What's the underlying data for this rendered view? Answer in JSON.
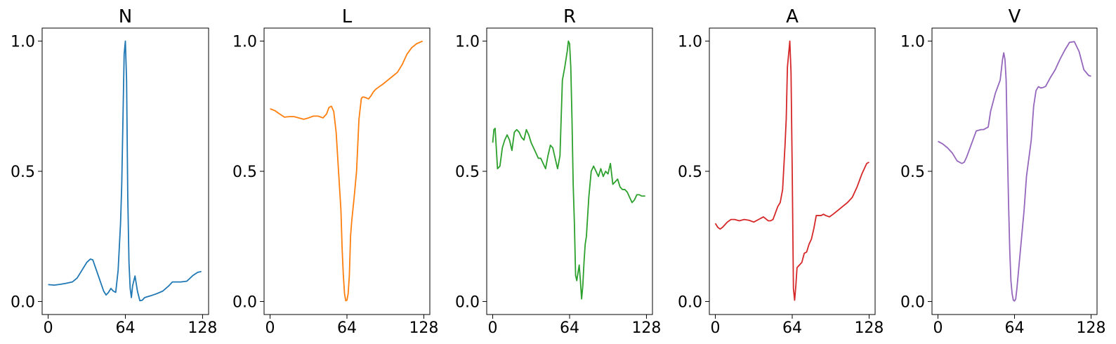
{
  "chart_data": [
    {
      "type": "line",
      "title": "N",
      "color": "#1f77b4",
      "xlim": [
        -5,
        133
      ],
      "ylim": [
        -0.05,
        1.05
      ],
      "xticks": [
        0,
        64,
        128
      ],
      "yticks": [
        0.0,
        0.5,
        1.0
      ],
      "xtick_labels": [
        "0",
        "64",
        "128"
      ],
      "ytick_labels": [
        "0.0",
        "0.5",
        "1.0"
      ],
      "series": [
        {
          "x": [
            0,
            5,
            10,
            15,
            20,
            24,
            28,
            32,
            35,
            37,
            40,
            43,
            46,
            48,
            50,
            52,
            54,
            56,
            58,
            60,
            61,
            62,
            63,
            64,
            65,
            66,
            67,
            68,
            69,
            70,
            72,
            74,
            76,
            78,
            80,
            85,
            90,
            95,
            100,
            103,
            106,
            110,
            115,
            120,
            124,
            127
          ],
          "values": [
            0.065,
            0.063,
            0.066,
            0.07,
            0.075,
            0.09,
            0.12,
            0.15,
            0.163,
            0.16,
            0.12,
            0.08,
            0.04,
            0.025,
            0.035,
            0.05,
            0.04,
            0.035,
            0.12,
            0.3,
            0.45,
            0.7,
            0.95,
            1.0,
            0.85,
            0.4,
            0.15,
            0.05,
            0.015,
            0.06,
            0.098,
            0.04,
            0.003,
            0.005,
            0.015,
            0.022,
            0.03,
            0.04,
            0.06,
            0.075,
            0.075,
            0.075,
            0.078,
            0.1,
            0.112,
            0.115
          ]
        }
      ]
    },
    {
      "type": "line",
      "title": "L",
      "color": "#ff7f0e",
      "xlim": [
        -5,
        133
      ],
      "ylim": [
        -0.05,
        1.05
      ],
      "xticks": [
        0,
        64,
        128
      ],
      "yticks": [
        0.0,
        0.5,
        1.0
      ],
      "xtick_labels": [
        "0",
        "64",
        "128"
      ],
      "ytick_labels": [
        "0.0",
        "0.5",
        "1.0"
      ],
      "series": [
        {
          "x": [
            0,
            4,
            8,
            12,
            16,
            20,
            24,
            28,
            32,
            36,
            40,
            44,
            47,
            49,
            51,
            53,
            55,
            57,
            59,
            60,
            61,
            62,
            63,
            64,
            65,
            66,
            67,
            68,
            70,
            72,
            74,
            76,
            77,
            78,
            80,
            82,
            84,
            86,
            88,
            90,
            94,
            98,
            102,
            106,
            110,
            114,
            118,
            122,
            127
          ],
          "values": [
            0.74,
            0.733,
            0.72,
            0.708,
            0.71,
            0.71,
            0.705,
            0.7,
            0.705,
            0.712,
            0.712,
            0.705,
            0.72,
            0.745,
            0.75,
            0.73,
            0.65,
            0.5,
            0.35,
            0.2,
            0.1,
            0.03,
            0.003,
            0.005,
            0.03,
            0.1,
            0.25,
            0.31,
            0.4,
            0.5,
            0.7,
            0.78,
            0.785,
            0.785,
            0.782,
            0.778,
            0.79,
            0.805,
            0.815,
            0.822,
            0.835,
            0.85,
            0.865,
            0.88,
            0.91,
            0.95,
            0.975,
            0.99,
            1.0
          ]
        }
      ]
    },
    {
      "type": "line",
      "title": "R",
      "color": "#2ca02c",
      "xlim": [
        -5,
        133
      ],
      "ylim": [
        -0.05,
        1.05
      ],
      "xticks": [
        0,
        64,
        128
      ],
      "yticks": [
        0.0,
        0.5,
        1.0
      ],
      "xtick_labels": [
        "0",
        "64",
        "128"
      ],
      "ytick_labels": [
        "0.0",
        "0.5",
        "1.0"
      ],
      "series": [
        {
          "x": [
            0,
            1,
            2,
            4,
            6,
            8,
            10,
            12,
            14,
            16,
            18,
            20,
            22,
            24,
            26,
            28,
            30,
            32,
            34,
            36,
            38,
            40,
            42,
            44,
            46,
            48,
            50,
            52,
            54,
            56,
            58,
            60,
            62,
            63,
            64,
            65,
            66,
            67,
            68,
            69,
            70,
            72,
            73,
            74,
            75,
            76,
            77,
            78,
            80,
            82,
            84,
            86,
            88,
            90,
            92,
            94,
            96,
            98,
            100,
            102,
            104,
            106,
            108,
            110,
            112,
            114,
            116,
            118,
            120,
            122,
            124,
            127
          ],
          "values": [
            0.61,
            0.66,
            0.665,
            0.51,
            0.52,
            0.59,
            0.62,
            0.64,
            0.62,
            0.58,
            0.65,
            0.66,
            0.65,
            0.63,
            0.62,
            0.66,
            0.64,
            0.61,
            0.59,
            0.57,
            0.55,
            0.55,
            0.53,
            0.51,
            0.56,
            0.6,
            0.59,
            0.55,
            0.51,
            0.56,
            0.85,
            0.9,
            0.96,
            1.0,
            0.99,
            0.9,
            0.7,
            0.45,
            0.3,
            0.1,
            0.08,
            0.14,
            0.08,
            0.01,
            0.06,
            0.15,
            0.22,
            0.25,
            0.4,
            0.5,
            0.52,
            0.5,
            0.48,
            0.51,
            0.48,
            0.5,
            0.49,
            0.53,
            0.45,
            0.46,
            0.47,
            0.44,
            0.43,
            0.43,
            0.42,
            0.4,
            0.38,
            0.39,
            0.41,
            0.41,
            0.405,
            0.405
          ]
        }
      ]
    },
    {
      "type": "line",
      "title": "A",
      "color": "#d62728",
      "xlim": [
        -5,
        133
      ],
      "ylim": [
        -0.05,
        1.05
      ],
      "xticks": [
        0,
        64,
        128
      ],
      "yticks": [
        0.0,
        0.5,
        1.0
      ],
      "xtick_labels": [
        "0",
        "64",
        "128"
      ],
      "ytick_labels": [
        "0.0",
        "0.5",
        "1.0"
      ],
      "series": [
        {
          "x": [
            0,
            2,
            4,
            6,
            8,
            10,
            13,
            16,
            20,
            24,
            28,
            32,
            36,
            40,
            44,
            46,
            48,
            50,
            52,
            54,
            56,
            58,
            59,
            60,
            61,
            62,
            63,
            64,
            65,
            66,
            67,
            68,
            69,
            70,
            72,
            74,
            76,
            78,
            80,
            82,
            84,
            86,
            88,
            90,
            92,
            95,
            98,
            102,
            106,
            110,
            114,
            118,
            122,
            126,
            128
          ],
          "values": [
            0.3,
            0.285,
            0.278,
            0.285,
            0.295,
            0.305,
            0.315,
            0.315,
            0.31,
            0.315,
            0.312,
            0.305,
            0.315,
            0.325,
            0.31,
            0.31,
            0.315,
            0.34,
            0.365,
            0.38,
            0.43,
            0.6,
            0.7,
            0.9,
            0.95,
            1.0,
            0.88,
            0.5,
            0.05,
            0.005,
            0.06,
            0.13,
            0.135,
            0.14,
            0.15,
            0.185,
            0.19,
            0.22,
            0.24,
            0.28,
            0.33,
            0.33,
            0.33,
            0.335,
            0.33,
            0.325,
            0.335,
            0.35,
            0.365,
            0.38,
            0.4,
            0.44,
            0.49,
            0.53,
            0.535
          ]
        }
      ]
    },
    {
      "type": "line",
      "title": "V",
      "color": "#9467bd",
      "xlim": [
        -5,
        133
      ],
      "ylim": [
        -0.05,
        1.05
      ],
      "xticks": [
        0,
        64,
        128
      ],
      "yticks": [
        0.0,
        0.5,
        1.0
      ],
      "xtick_labels": [
        "0",
        "64",
        "128"
      ],
      "ytick_labels": [
        "0.0",
        "0.5",
        "1.0"
      ],
      "series": [
        {
          "x": [
            0,
            4,
            8,
            12,
            16,
            20,
            22,
            24,
            28,
            32,
            36,
            38,
            42,
            44,
            48,
            52,
            54,
            55,
            56,
            57,
            58,
            59,
            60,
            61,
            62,
            63,
            64,
            65,
            66,
            68,
            70,
            72,
            74,
            76,
            78,
            80,
            82,
            84,
            86,
            88,
            90,
            94,
            98,
            102,
            106,
            110,
            114,
            118,
            122,
            126,
            128
          ],
          "values": [
            0.615,
            0.605,
            0.59,
            0.57,
            0.54,
            0.53,
            0.535,
            0.555,
            0.605,
            0.655,
            0.66,
            0.66,
            0.67,
            0.73,
            0.8,
            0.85,
            0.93,
            0.955,
            0.93,
            0.85,
            0.6,
            0.38,
            0.2,
            0.08,
            0.03,
            0.005,
            0.002,
            0.01,
            0.05,
            0.15,
            0.25,
            0.35,
            0.48,
            0.55,
            0.62,
            0.75,
            0.81,
            0.825,
            0.82,
            0.822,
            0.826,
            0.86,
            0.89,
            0.93,
            0.965,
            0.995,
            0.998,
            0.96,
            0.89,
            0.868,
            0.865
          ]
        }
      ]
    }
  ]
}
